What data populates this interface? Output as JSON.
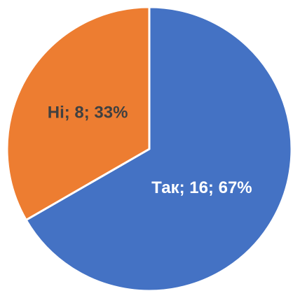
{
  "chart_data": {
    "type": "pie",
    "categories": [
      "Так",
      "Ні"
    ],
    "values": [
      16,
      8
    ],
    "value_labels": [
      "Так; 16; 67%",
      "Ні; 8; 33%"
    ],
    "colors": [
      "#4472c4",
      "#ed7d31"
    ],
    "label_colors": [
      "#ffffff",
      "#404040"
    ]
  }
}
